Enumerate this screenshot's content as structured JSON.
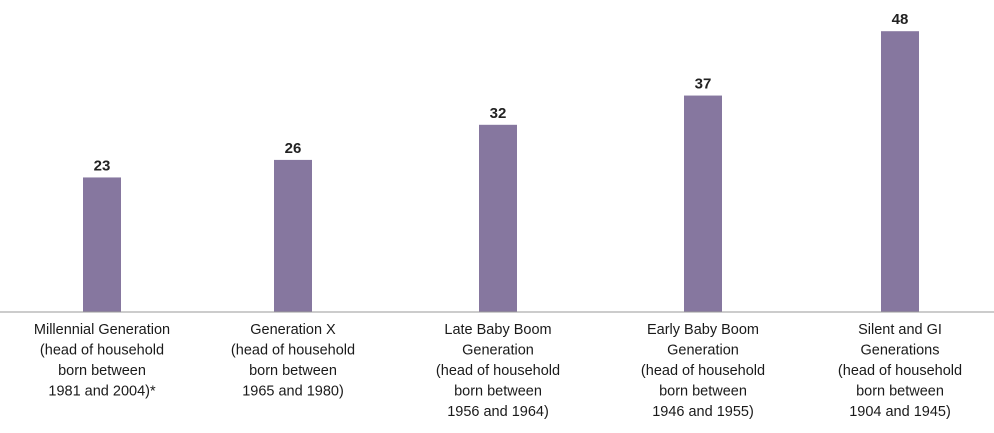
{
  "chart_data": {
    "type": "bar",
    "categories": [
      "Millennial Generation (head of household born between 1981 and 2004)*",
      "Generation X (head of household born between 1965 and 1980)",
      "Late Baby Boom Generation (head of household born between 1956 and 1964)",
      "Early Baby Boom Generation (head of household born between 1946 and 1955)",
      "Silent and GI Generations (head of household born between 1904 and 1945)"
    ],
    "category_lines": [
      [
        "Millennial Generation",
        "(head of household",
        "born between",
        "1981 and 2004)*"
      ],
      [
        "Generation X",
        "(head of household",
        "born between",
        "1965 and 1980)"
      ],
      [
        "Late Baby Boom",
        "Generation",
        "(head of household",
        "born between",
        "1956 and 1964)"
      ],
      [
        "Early Baby Boom",
        "Generation",
        "(head of household",
        "born between",
        "1946 and 1955)"
      ],
      [
        "Silent and GI",
        "Generations",
        "(head of household",
        "born between",
        "1904 and 1945)"
      ]
    ],
    "values": [
      23,
      26,
      32,
      37,
      48
    ],
    "data_labels": [
      "23",
      "26",
      "32",
      "37",
      "48"
    ],
    "title": "",
    "xlabel": "",
    "ylabel": "",
    "ylim": [
      0,
      50
    ],
    "grid": false,
    "legend": "none",
    "bar_color": "#86779f",
    "baseline_color": "#999999"
  }
}
